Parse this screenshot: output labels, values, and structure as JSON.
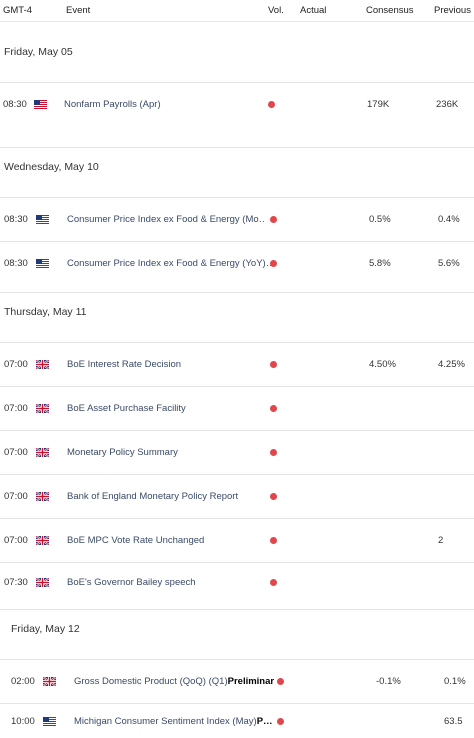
{
  "header": {
    "timezone": "GMT-4",
    "event": "Event",
    "vol": "Vol.",
    "actual": "Actual",
    "consensus": "Consensus",
    "previous": "Previous"
  },
  "colors": {
    "dot": "#e0464a",
    "event_text": "#3a4a66",
    "divider": "#e4e4e4"
  },
  "days": [
    {
      "label": "Friday, May 05"
    },
    {
      "label": "Wednesday, May 10"
    },
    {
      "label": "Thursday, May 11"
    },
    {
      "label": "Friday, May 12"
    }
  ],
  "events": [
    {
      "time": "08:30",
      "flag": "us-flag-icon",
      "name": "Nonfarm Payrolls (Apr)",
      "name_bold": "",
      "consensus": "179K",
      "previous": "236K"
    },
    {
      "time": "08:30",
      "flag": "us-flag-icon",
      "name": "Consumer Price Index ex Food & Energy (Mo…",
      "name_bold": "",
      "consensus": "0.5%",
      "previous": "0.4%"
    },
    {
      "time": "08:30",
      "flag": "us-flag-icon",
      "name": "Consumer Price Index ex Food & Energy (YoY)…",
      "name_bold": "",
      "consensus": "5.8%",
      "previous": "5.6%"
    },
    {
      "time": "07:00",
      "flag": "uk-flag-icon",
      "name": "BoE Interest Rate Decision",
      "name_bold": "",
      "consensus": "4.50%",
      "previous": "4.25%"
    },
    {
      "time": "07:00",
      "flag": "uk-flag-icon",
      "name": "BoE Asset Purchase Facility",
      "name_bold": "",
      "consensus": "",
      "previous": ""
    },
    {
      "time": "07:00",
      "flag": "uk-flag-icon",
      "name": "Monetary Policy Summary",
      "name_bold": "",
      "consensus": "",
      "previous": ""
    },
    {
      "time": "07:00",
      "flag": "uk-flag-icon",
      "name": "Bank of England Monetary Policy Report",
      "name_bold": "",
      "consensus": "",
      "previous": ""
    },
    {
      "time": "07:00",
      "flag": "uk-flag-icon",
      "name": "BoE MPC Vote Rate Unchanged",
      "name_bold": "",
      "consensus": "",
      "previous": "2"
    },
    {
      "time": "07:30",
      "flag": "uk-flag-icon",
      "name": "BoE's Governor Bailey speech",
      "name_bold": "",
      "consensus": "",
      "previous": ""
    },
    {
      "time": "02:00",
      "flag": "uk-flag-icon",
      "name": "Gross Domestic Product (QoQ) (Q1)",
      "name_bold": "Preliminar",
      "consensus": "-0.1%",
      "previous": "0.1%"
    },
    {
      "time": "10:00",
      "flag": "us-flag-icon",
      "name": "Michigan Consumer Sentiment Index (May)",
      "name_bold": "P…",
      "consensus": "",
      "previous": "63.5"
    }
  ]
}
